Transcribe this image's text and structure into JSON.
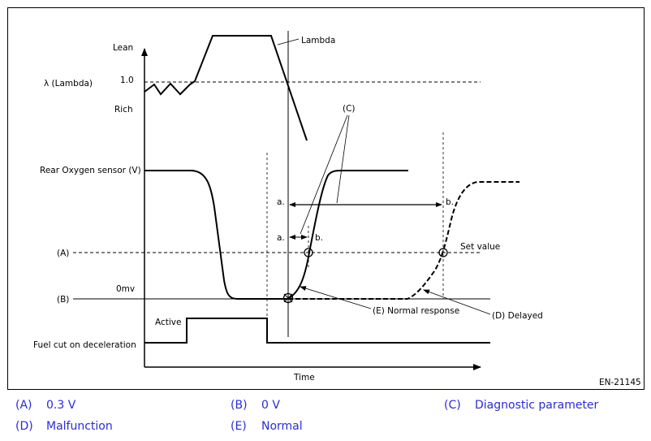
{
  "diagram": {
    "labels": {
      "lean": "Lean",
      "lambda_axis": "λ  (Lambda)",
      "one": "1.0",
      "rich": "Rich",
      "rear_o2": "Rear Oxygen sensor (V)",
      "a_level": "(A)",
      "b_level": "(B)",
      "zero_mv": "0mv",
      "fuel_cut": "Fuel cut on deceleration",
      "active": "Active",
      "time": "Time",
      "lambda_curve": "Lambda",
      "c_label": "(C)",
      "a1": "a.",
      "b1": "b.",
      "a2": "a.",
      "b2": "b.",
      "set_value": "Set value",
      "normal_response": "(E) Normal response",
      "delayed": "(D) Delayed",
      "figure_code": "EN-21145"
    }
  },
  "legend": [
    {
      "code": "(A)",
      "text": "0.3 V"
    },
    {
      "code": "(B)",
      "text": "0 V"
    },
    {
      "code": "(C)",
      "text": "Diagnostic parameter"
    },
    {
      "code": "(D)",
      "text": "Malfunction"
    },
    {
      "code": "(E)",
      "text": "Normal"
    }
  ]
}
